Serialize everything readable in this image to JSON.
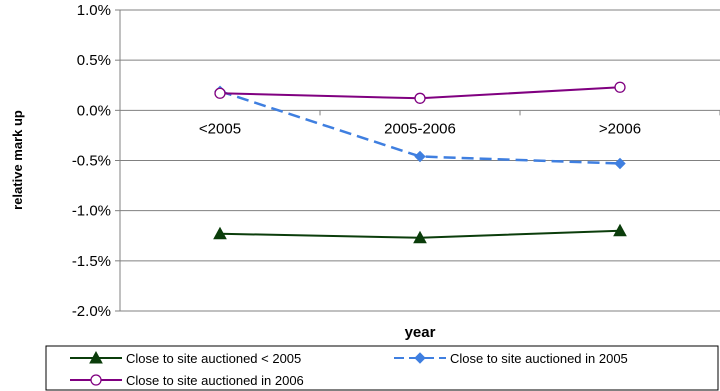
{
  "chart_data": {
    "type": "line",
    "title": "",
    "xlabel": "year",
    "ylabel": "relative mark up",
    "categories": [
      "<2005",
      "2005-2006",
      ">2006"
    ],
    "ylim": [
      -2.0,
      1.0
    ],
    "yticks": [
      1.0,
      0.5,
      0.0,
      -0.5,
      -1.0,
      -1.5,
      -2.0
    ],
    "ytick_labels": [
      "1.0%",
      "0.5%",
      "0.0%",
      "-0.5%",
      "-1.0%",
      "-1.5%",
      "-2.0%"
    ],
    "grid": true,
    "legend_position": "bottom",
    "series": [
      {
        "name": "Close to site auctioned < 2005",
        "values": [
          -1.23,
          -1.27,
          -1.2
        ],
        "color": "#0b3d0b",
        "marker": "triangle",
        "dash": "solid"
      },
      {
        "name": "Close to site auctioned in 2005",
        "values": [
          0.19,
          -0.46,
          -0.53
        ],
        "color": "#3f7fe0",
        "marker": "diamond",
        "dash": "dashed"
      },
      {
        "name": "Close to site auctioned in 2006",
        "values": [
          0.17,
          0.12,
          0.23
        ],
        "color": "#800080",
        "marker": "circle-open",
        "dash": "solid"
      }
    ]
  }
}
